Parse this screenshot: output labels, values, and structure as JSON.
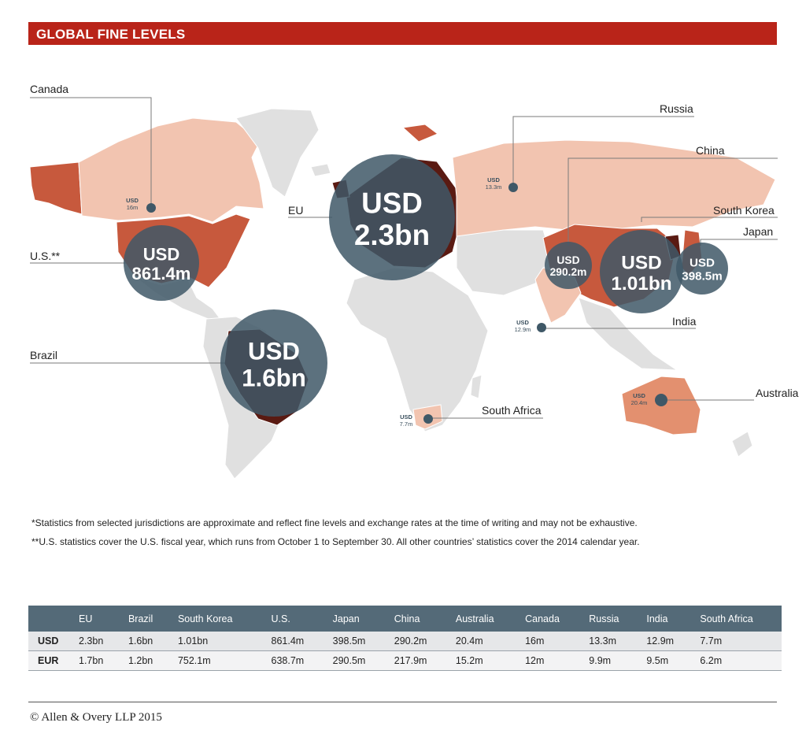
{
  "title": "GLOBAL FINE LEVELS",
  "colors": {
    "title_bar": "#b92419",
    "bubble": "#3f5867",
    "land_light": "#e0e0e0",
    "land_pale": "#f2c4b0",
    "land_medium": "#e3906f",
    "land_strong": "#c7593d",
    "land_dark": "#5a1a12"
  },
  "regions": [
    {
      "name": "Canada",
      "currency": "USD",
      "value": "16m"
    },
    {
      "name": "U.S.**",
      "currency": "USD",
      "value": "861.4m"
    },
    {
      "name": "Brazil",
      "currency": "USD",
      "value": "1.6bn"
    },
    {
      "name": "EU",
      "currency": "USD",
      "value": "2.3bn"
    },
    {
      "name": "Russia",
      "currency": "USD",
      "value": "13.3m"
    },
    {
      "name": "China",
      "currency": "USD",
      "value": "290.2m"
    },
    {
      "name": "South Korea",
      "currency": "USD",
      "value": "1.01bn"
    },
    {
      "name": "Japan",
      "currency": "USD",
      "value": "398.5m"
    },
    {
      "name": "India",
      "currency": "USD",
      "value": "12.9m"
    },
    {
      "name": "South Africa",
      "currency": "USD",
      "value": "7.7m"
    },
    {
      "name": "Australia",
      "currency": "USD",
      "value": "20.4m"
    }
  ],
  "notes": [
    "*Statistics from selected jurisdictions are approximate and reflect fine levels and exchange rates at the time of writing and may not be exhaustive.",
    "**U.S. statistics cover the U.S. fiscal year, which runs from October 1 to September 30. All other countries’ statistics cover the 2014 calendar year."
  ],
  "table": {
    "columns": [
      "EU",
      "Brazil",
      "South Korea",
      "U.S.",
      "Japan",
      "China",
      "Australia",
      "Canada",
      "Russia",
      "India",
      "South Africa"
    ],
    "rows": [
      {
        "label": "USD",
        "values": [
          "2.3bn",
          "1.6bn",
          "1.01bn",
          "861.4m",
          "398.5m",
          "290.2m",
          "20.4m",
          "16m",
          "13.3m",
          "12.9m",
          "7.7m"
        ]
      },
      {
        "label": "EUR",
        "values": [
          "1.7bn",
          "1.2bn",
          "752.1m",
          "638.7m",
          "290.5m",
          "217.9m",
          "15.2m",
          "12m",
          "9.9m",
          "9.5m",
          "6.2m"
        ]
      }
    ]
  },
  "copyright": "© Allen & Overy LLP 2015"
}
